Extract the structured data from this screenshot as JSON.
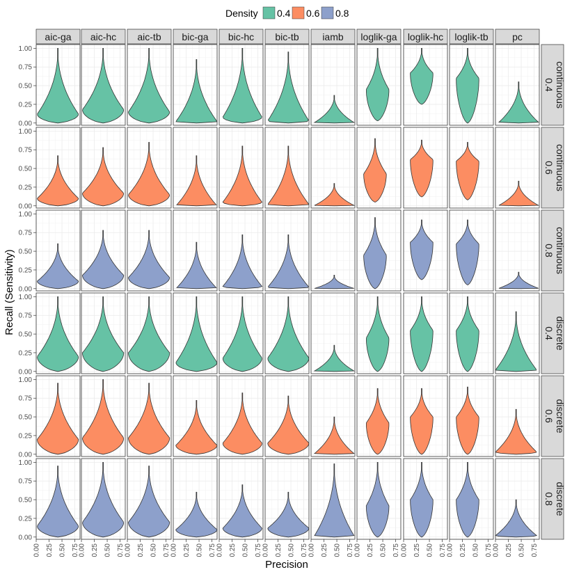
{
  "chart_data": {
    "type": "violin",
    "title": "",
    "xlabel": "Precision",
    "ylabel": "Recall (Sensitivity)",
    "xlim": [
      0,
      0.85
    ],
    "ylim": [
      -0.03,
      1.05
    ],
    "x_ticks": [
      "0.00",
      "0.25",
      "0.50",
      "0.75"
    ],
    "y_ticks": [
      "0.00",
      "0.25",
      "0.50",
      "0.75",
      "1.00"
    ],
    "x_tick_values": [
      0,
      0.25,
      0.5,
      0.75
    ],
    "y_tick_values": [
      0,
      0.25,
      0.5,
      0.75,
      1.0
    ],
    "legend": {
      "title": "Density",
      "entries": [
        {
          "label": "0.4",
          "color": "#66c2a5"
        },
        {
          "label": "0.6",
          "color": "#fc8d62"
        },
        {
          "label": "0.8",
          "color": "#8da0cb"
        }
      ],
      "position": "top"
    },
    "columns": [
      "aic-ga",
      "aic-hc",
      "aic-tb",
      "bic-ga",
      "bic-hc",
      "bic-tb",
      "iamb",
      "loglik-ga",
      "loglik-hc",
      "loglik-tb",
      "pc"
    ],
    "rows": [
      {
        "type": "continuous",
        "density": "0.4",
        "color": "#66c2a5"
      },
      {
        "type": "continuous",
        "density": "0.6",
        "color": "#fc8d62"
      },
      {
        "type": "continuous",
        "density": "0.8",
        "color": "#8da0cb"
      },
      {
        "type": "discrete",
        "density": "0.4",
        "color": "#66c2a5"
      },
      {
        "type": "discrete",
        "density": "0.6",
        "color": "#fc8d62"
      },
      {
        "type": "discrete",
        "density": "0.8",
        "color": "#8da0cb"
      }
    ],
    "violins_note": "each violin: x = precision center, ymin/ymax = recall extent, mode = recall of widest point, width = max half-width in precision units",
    "violins": [
      [
        {
          "x": 0.42,
          "ymin": 0,
          "ymax": 1.0,
          "mode": 0.12,
          "width": 0.4
        },
        {
          "x": 0.42,
          "ymin": 0,
          "ymax": 1.0,
          "mode": 0.18,
          "width": 0.4
        },
        {
          "x": 0.42,
          "ymin": 0,
          "ymax": 1.0,
          "mode": 0.15,
          "width": 0.4
        },
        {
          "x": 0.45,
          "ymin": 0,
          "ymax": 0.85,
          "mode": 0.02,
          "width": 0.4
        },
        {
          "x": 0.45,
          "ymin": 0,
          "ymax": 1.0,
          "mode": 0.08,
          "width": 0.38
        },
        {
          "x": 0.45,
          "ymin": 0,
          "ymax": 0.95,
          "mode": 0.03,
          "width": 0.4
        },
        {
          "x": 0.45,
          "ymin": 0,
          "ymax": 0.37,
          "mode": 0.0,
          "width": 0.4
        },
        {
          "x": 0.4,
          "ymin": 0.03,
          "ymax": 1.0,
          "mode": 0.45,
          "width": 0.22
        },
        {
          "x": 0.35,
          "ymin": 0.25,
          "ymax": 1.0,
          "mode": 0.67,
          "width": 0.22
        },
        {
          "x": 0.35,
          "ymin": 0.0,
          "ymax": 1.0,
          "mode": 0.6,
          "width": 0.22
        },
        {
          "x": 0.45,
          "ymin": 0,
          "ymax": 0.55,
          "mode": 0.0,
          "width": 0.4
        }
      ],
      [
        {
          "x": 0.42,
          "ymin": 0,
          "ymax": 0.67,
          "mode": 0.1,
          "width": 0.4
        },
        {
          "x": 0.42,
          "ymin": 0,
          "ymax": 0.78,
          "mode": 0.17,
          "width": 0.4
        },
        {
          "x": 0.42,
          "ymin": 0,
          "ymax": 0.85,
          "mode": 0.15,
          "width": 0.4
        },
        {
          "x": 0.45,
          "ymin": 0,
          "ymax": 0.67,
          "mode": 0.0,
          "width": 0.4
        },
        {
          "x": 0.45,
          "ymin": 0,
          "ymax": 0.8,
          "mode": 0.05,
          "width": 0.38
        },
        {
          "x": 0.45,
          "ymin": 0,
          "ymax": 0.8,
          "mode": 0.02,
          "width": 0.4
        },
        {
          "x": 0.45,
          "ymin": 0,
          "ymax": 0.3,
          "mode": 0.0,
          "width": 0.4
        },
        {
          "x": 0.35,
          "ymin": 0.05,
          "ymax": 0.9,
          "mode": 0.43,
          "width": 0.22
        },
        {
          "x": 0.35,
          "ymin": 0.12,
          "ymax": 0.88,
          "mode": 0.62,
          "width": 0.22
        },
        {
          "x": 0.35,
          "ymin": 0.08,
          "ymax": 0.85,
          "mode": 0.6,
          "width": 0.22
        },
        {
          "x": 0.45,
          "ymin": 0,
          "ymax": 0.33,
          "mode": 0.0,
          "width": 0.4
        }
      ],
      [
        {
          "x": 0.42,
          "ymin": 0,
          "ymax": 0.6,
          "mode": 0.1,
          "width": 0.4
        },
        {
          "x": 0.42,
          "ymin": 0,
          "ymax": 0.78,
          "mode": 0.18,
          "width": 0.4
        },
        {
          "x": 0.42,
          "ymin": 0,
          "ymax": 0.78,
          "mode": 0.15,
          "width": 0.4
        },
        {
          "x": 0.45,
          "ymin": 0,
          "ymax": 0.62,
          "mode": 0.0,
          "width": 0.4
        },
        {
          "x": 0.45,
          "ymin": 0,
          "ymax": 0.72,
          "mode": 0.03,
          "width": 0.38
        },
        {
          "x": 0.45,
          "ymin": 0,
          "ymax": 0.72,
          "mode": 0.02,
          "width": 0.4
        },
        {
          "x": 0.45,
          "ymin": 0,
          "ymax": 0.18,
          "mode": 0.0,
          "width": 0.4
        },
        {
          "x": 0.35,
          "ymin": 0.0,
          "ymax": 0.95,
          "mode": 0.45,
          "width": 0.22
        },
        {
          "x": 0.35,
          "ymin": 0.12,
          "ymax": 0.92,
          "mode": 0.62,
          "width": 0.22
        },
        {
          "x": 0.35,
          "ymin": 0.05,
          "ymax": 0.92,
          "mode": 0.6,
          "width": 0.22
        },
        {
          "x": 0.45,
          "ymin": 0,
          "ymax": 0.22,
          "mode": 0.0,
          "width": 0.4
        }
      ],
      [
        {
          "x": 0.42,
          "ymin": 0,
          "ymax": 1.0,
          "mode": 0.2,
          "width": 0.4
        },
        {
          "x": 0.42,
          "ymin": 0,
          "ymax": 1.0,
          "mode": 0.25,
          "width": 0.4
        },
        {
          "x": 0.42,
          "ymin": 0,
          "ymax": 1.0,
          "mode": 0.25,
          "width": 0.4
        },
        {
          "x": 0.45,
          "ymin": 0,
          "ymax": 1.0,
          "mode": 0.12,
          "width": 0.4
        },
        {
          "x": 0.45,
          "ymin": 0,
          "ymax": 1.0,
          "mode": 0.18,
          "width": 0.38
        },
        {
          "x": 0.45,
          "ymin": 0,
          "ymax": 1.0,
          "mode": 0.18,
          "width": 0.4
        },
        {
          "x": 0.45,
          "ymin": 0,
          "ymax": 0.35,
          "mode": 0.0,
          "width": 0.4
        },
        {
          "x": 0.4,
          "ymin": 0.0,
          "ymax": 1.0,
          "mode": 0.45,
          "width": 0.22
        },
        {
          "x": 0.35,
          "ymin": 0.0,
          "ymax": 1.0,
          "mode": 0.55,
          "width": 0.22
        },
        {
          "x": 0.35,
          "ymin": 0.0,
          "ymax": 1.0,
          "mode": 0.55,
          "width": 0.22
        },
        {
          "x": 0.4,
          "ymin": 0,
          "ymax": 0.8,
          "mode": 0.02,
          "width": 0.4
        }
      ],
      [
        {
          "x": 0.42,
          "ymin": 0,
          "ymax": 0.95,
          "mode": 0.2,
          "width": 0.4
        },
        {
          "x": 0.42,
          "ymin": 0,
          "ymax": 1.0,
          "mode": 0.22,
          "width": 0.4
        },
        {
          "x": 0.42,
          "ymin": 0,
          "ymax": 0.95,
          "mode": 0.22,
          "width": 0.4
        },
        {
          "x": 0.45,
          "ymin": 0,
          "ymax": 0.72,
          "mode": 0.12,
          "width": 0.4
        },
        {
          "x": 0.45,
          "ymin": 0,
          "ymax": 0.82,
          "mode": 0.15,
          "width": 0.38
        },
        {
          "x": 0.45,
          "ymin": 0,
          "ymax": 0.78,
          "mode": 0.15,
          "width": 0.4
        },
        {
          "x": 0.45,
          "ymin": 0,
          "ymax": 0.5,
          "mode": 0.0,
          "width": 0.4
        },
        {
          "x": 0.4,
          "ymin": 0.0,
          "ymax": 0.88,
          "mode": 0.42,
          "width": 0.22
        },
        {
          "x": 0.35,
          "ymin": 0.0,
          "ymax": 0.88,
          "mode": 0.5,
          "width": 0.22
        },
        {
          "x": 0.35,
          "ymin": 0.0,
          "ymax": 0.9,
          "mode": 0.5,
          "width": 0.22
        },
        {
          "x": 0.4,
          "ymin": 0,
          "ymax": 0.6,
          "mode": 0.03,
          "width": 0.4
        }
      ],
      [
        {
          "x": 0.42,
          "ymin": 0,
          "ymax": 0.95,
          "mode": 0.15,
          "width": 0.4
        },
        {
          "x": 0.42,
          "ymin": 0,
          "ymax": 1.0,
          "mode": 0.2,
          "width": 0.4
        },
        {
          "x": 0.42,
          "ymin": 0,
          "ymax": 0.95,
          "mode": 0.2,
          "width": 0.4
        },
        {
          "x": 0.45,
          "ymin": 0,
          "ymax": 0.6,
          "mode": 0.1,
          "width": 0.4
        },
        {
          "x": 0.45,
          "ymin": 0,
          "ymax": 0.7,
          "mode": 0.12,
          "width": 0.38
        },
        {
          "x": 0.45,
          "ymin": 0,
          "ymax": 0.6,
          "mode": 0.12,
          "width": 0.4
        },
        {
          "x": 0.45,
          "ymin": 0,
          "ymax": 0.98,
          "mode": 0.0,
          "width": 0.4
        },
        {
          "x": 0.4,
          "ymin": 0.0,
          "ymax": 1.0,
          "mode": 0.42,
          "width": 0.22
        },
        {
          "x": 0.35,
          "ymin": 0.0,
          "ymax": 1.0,
          "mode": 0.5,
          "width": 0.22
        },
        {
          "x": 0.35,
          "ymin": 0.0,
          "ymax": 1.0,
          "mode": 0.5,
          "width": 0.22
        },
        {
          "x": 0.4,
          "ymin": 0,
          "ymax": 0.5,
          "mode": 0.02,
          "width": 0.4
        }
      ]
    ]
  }
}
